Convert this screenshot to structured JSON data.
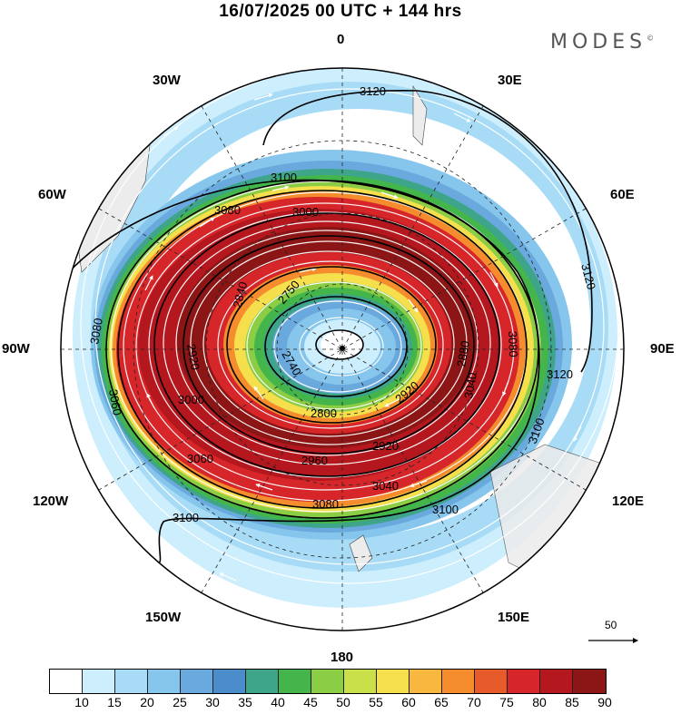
{
  "header": {
    "title": "16/07/2025  00 UTC  + 144 hrs",
    "brand": "MODES",
    "brand_mark": "©"
  },
  "map": {
    "projection": "south-polar-stereographic",
    "longitude_labels": [
      "0",
      "30E",
      "60E",
      "90E",
      "120E",
      "150E",
      "180",
      "150W",
      "120W",
      "90W",
      "60W",
      "30W"
    ],
    "contour_labels": [
      "3120",
      "3120",
      "3120",
      "3100",
      "3100",
      "3100",
      "3100",
      "3080",
      "3080",
      "3080",
      "3060",
      "3060",
      "3040",
      "3000",
      "2960",
      "2920",
      "2920",
      "2880",
      "2840",
      "2750",
      "2740",
      "2800",
      "2920",
      "3000",
      "3040",
      "3080"
    ],
    "wind_scale_label": "50",
    "colors": {
      "land": "#ececec",
      "ocean_bg": "#ffffff"
    }
  },
  "colorbar": {
    "levels": [
      "10",
      "15",
      "20",
      "25",
      "30",
      "35",
      "40",
      "45",
      "50",
      "55",
      "60",
      "65",
      "70",
      "75",
      "80",
      "85",
      "90"
    ],
    "colors": [
      "#ffffff",
      "#cdeefc",
      "#a8dcf6",
      "#87c6ec",
      "#6aa9dd",
      "#4b8ccb",
      "#3ea58a",
      "#44b54a",
      "#8ccd46",
      "#c9e04a",
      "#f5df4c",
      "#f8b83f",
      "#f58c2e",
      "#e75a2a",
      "#d6262a",
      "#b5171f",
      "#8c1515"
    ]
  }
}
